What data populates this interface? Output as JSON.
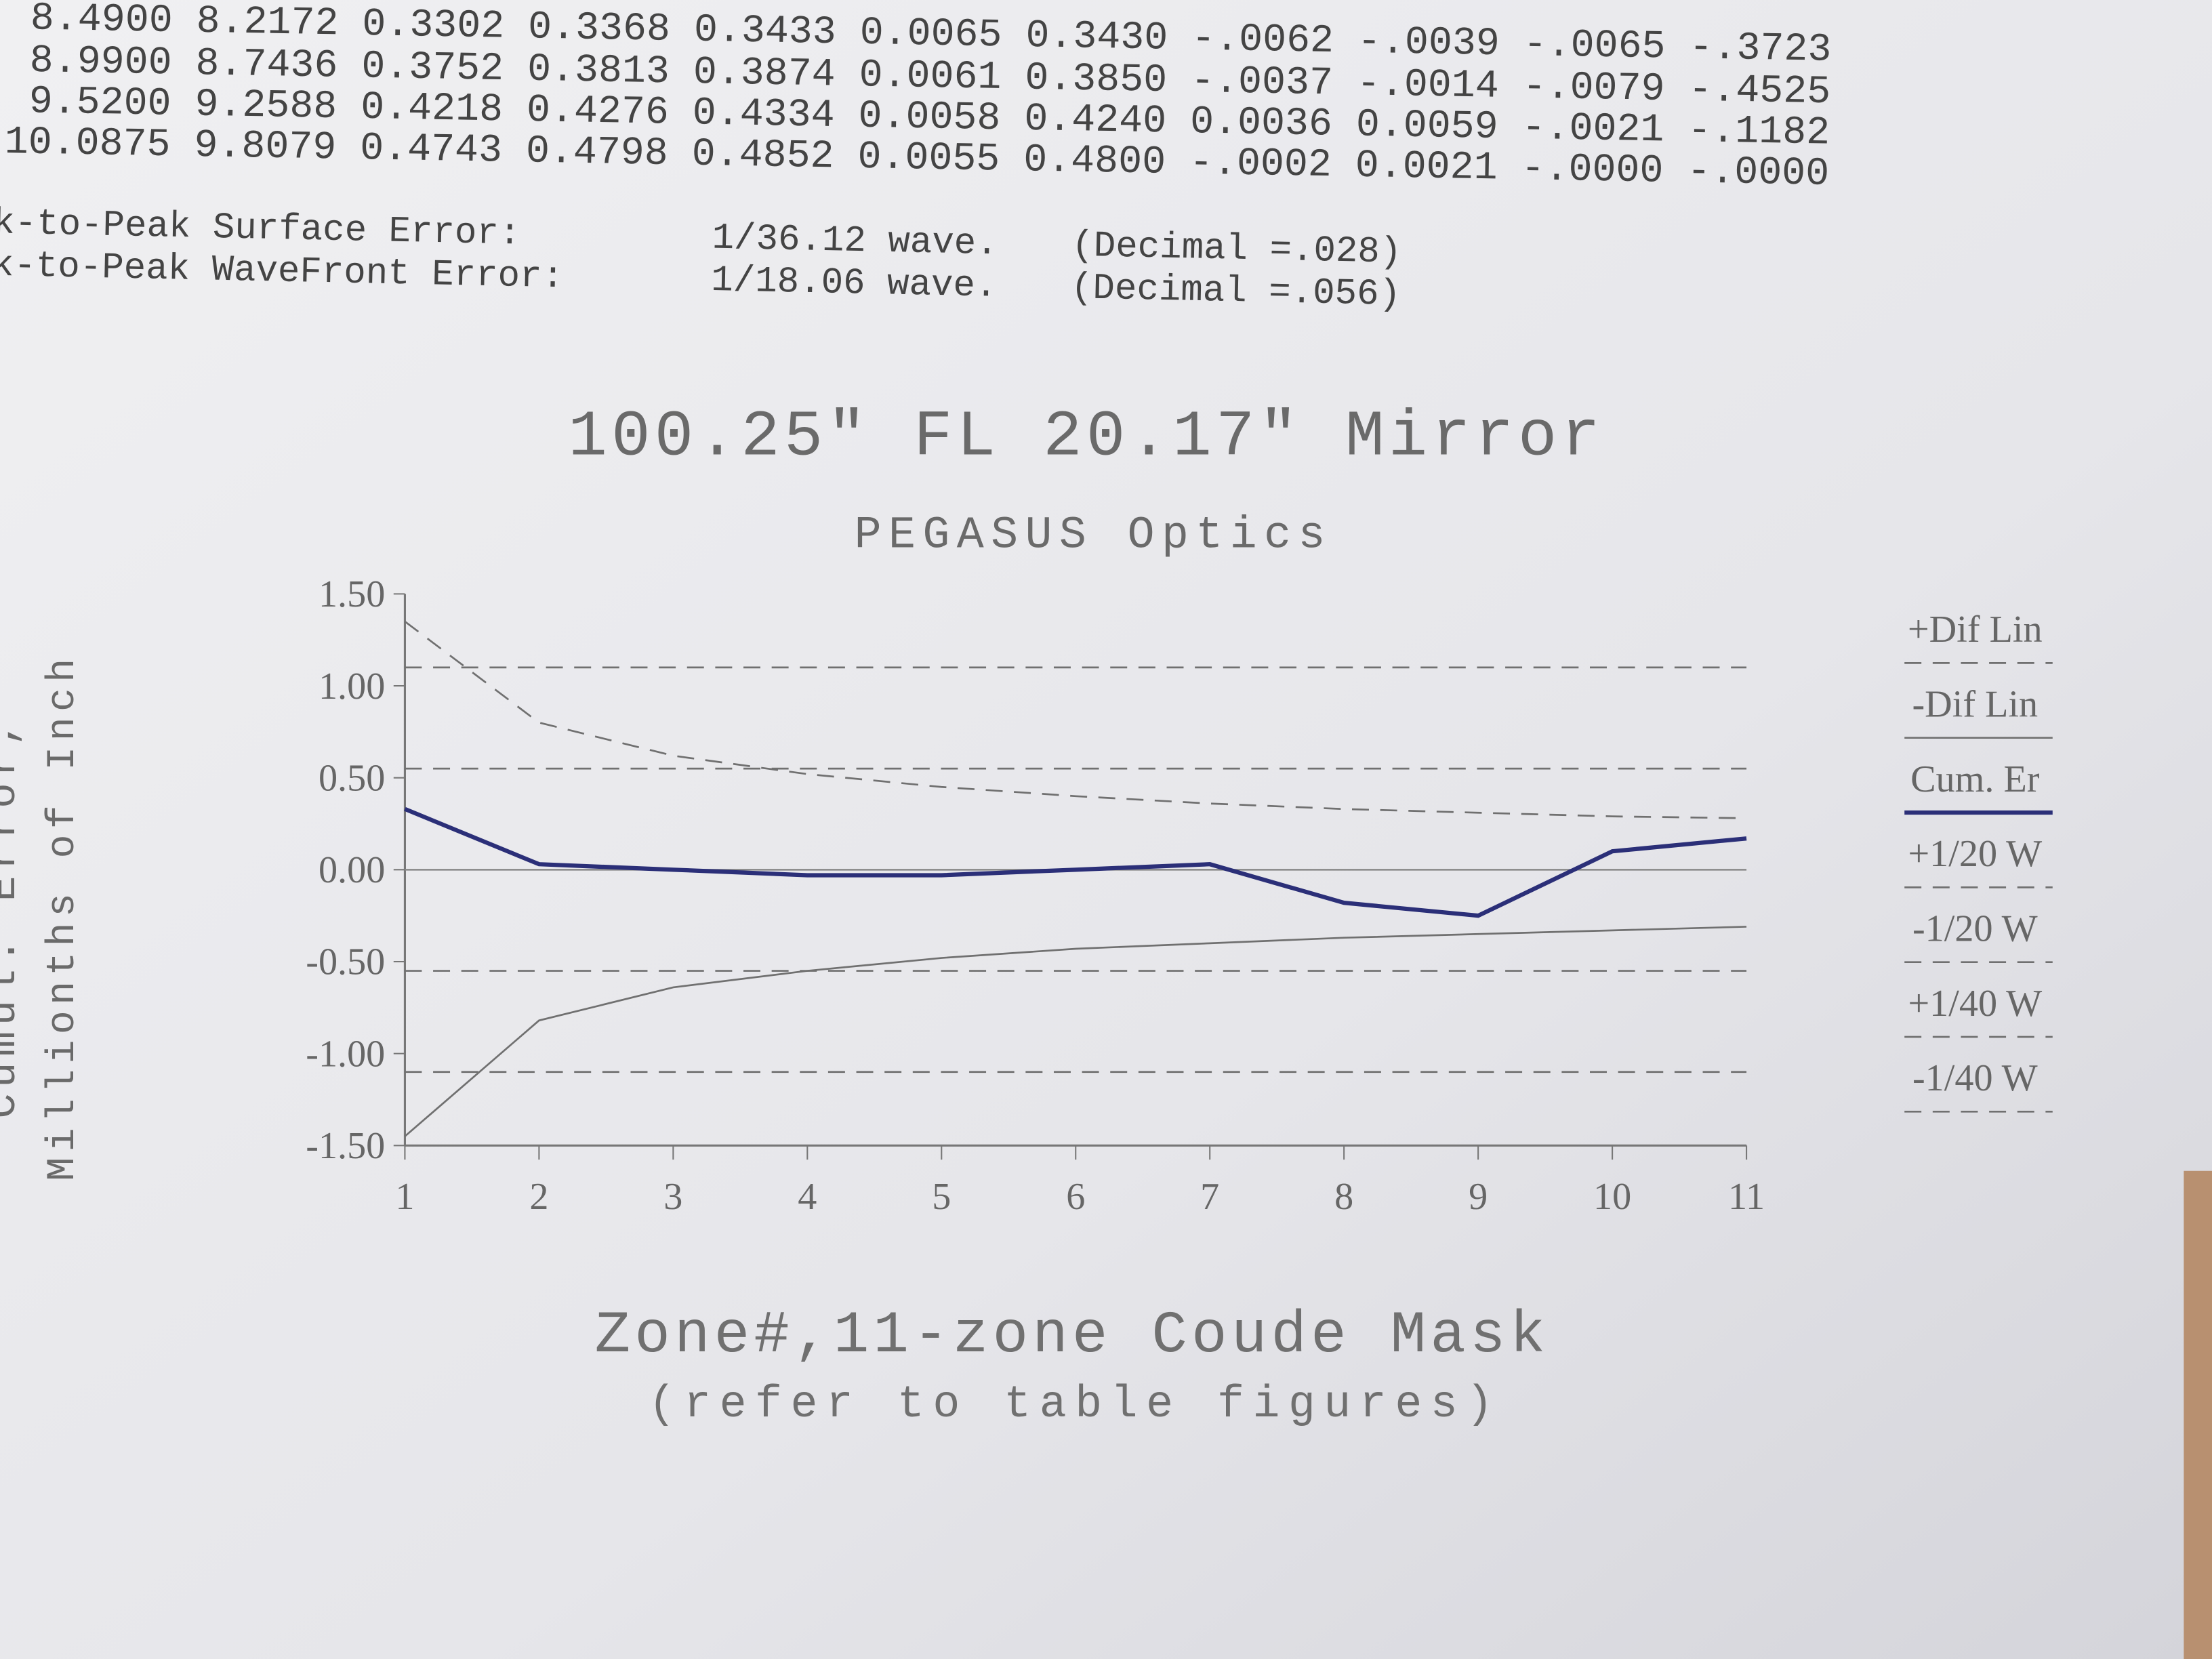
{
  "table": {
    "rows": [
      [
        "8.4900",
        "8.2172",
        "0.3302",
        "0.3368",
        "0.3433",
        "0.0065",
        "0.3430",
        "-.0062",
        "-.0039",
        "-.0065",
        "-.3723"
      ],
      [
        "8.9900",
        "8.7436",
        "0.3752",
        "0.3813",
        "0.3874",
        "0.0061",
        "0.3850",
        "-.0037",
        "-.0014",
        "-.0079",
        "-.4525"
      ],
      [
        "9.5200",
        "9.2588",
        "0.4218",
        "0.4276",
        "0.4334",
        "0.0058",
        "0.4240",
        "0.0036",
        "0.0059",
        "-.0021",
        "-.1182"
      ],
      [
        "10.0875",
        "9.8079",
        "0.4743",
        "0.4798",
        "0.4852",
        "0.0055",
        "0.4800",
        "-.0002",
        "0.0021",
        "-.0000",
        "-.0000"
      ]
    ]
  },
  "errors": [
    [
      "k-to-Peak Surface Error:",
      "1/36.12 wave.",
      "(Decimal =.028)"
    ],
    [
      "k-to-Peak WaveFront Error:",
      "1/18.06 wave.",
      "(Decimal =.056)"
    ]
  ],
  "chart_data": {
    "type": "line",
    "title": "100.25\" FL 20.17\" Mirror",
    "subtitle": "PEGASUS Optics",
    "ylabel": [
      "Cumul. Error,",
      "Millionths of Inch"
    ],
    "xlabel": "Zone#,11-zone Coude Mask",
    "note": "(refer to table figures)",
    "x": [
      1,
      2,
      3,
      4,
      5,
      6,
      7,
      8,
      9,
      10,
      11
    ],
    "xlim": [
      1,
      11
    ],
    "xticks": [
      1,
      2,
      3,
      4,
      5,
      6,
      7,
      8,
      9,
      10,
      11
    ],
    "ylim": [
      -1.5,
      1.5
    ],
    "yticks": [
      {
        "value": 1.5,
        "label": "1.50"
      },
      {
        "value": 1,
        "label": "1.00"
      },
      {
        "value": 0.5,
        "label": "0.50"
      },
      {
        "value": 0,
        "label": "0.00"
      },
      {
        "value": -0.5,
        "label": "-0.50"
      },
      {
        "value": -1,
        "label": "-1.00"
      },
      {
        "value": -1.5,
        "label": "-1.50"
      }
    ],
    "legend": "right",
    "series": [
      {
        "name": "+Dif Lin",
        "color": "#707070",
        "style": "dashed",
        "values": [
          1.35,
          0.8,
          0.62,
          0.52,
          0.45,
          0.4,
          0.36,
          0.33,
          0.31,
          0.29,
          0.28
        ]
      },
      {
        "name": "-Dif Lin",
        "color": "#707070",
        "style": "solid",
        "values": [
          -1.45,
          -0.82,
          -0.64,
          -0.55,
          -0.48,
          -0.43,
          -0.4,
          -0.37,
          -0.35,
          -0.33,
          -0.31
        ]
      },
      {
        "name": "Cum. Er",
        "color": "#2b2f78",
        "style": "solid",
        "values": [
          0.33,
          0.03,
          0,
          -0.03,
          -0.03,
          0,
          0.03,
          -0.18,
          -0.25,
          0.1,
          0.17
        ]
      },
      {
        "name": "+1/20 W",
        "color": "#707070",
        "style": "dashed",
        "values": [
          1.1,
          1.1,
          1.1,
          1.1,
          1.1,
          1.1,
          1.1,
          1.1,
          1.1,
          1.1,
          1.1
        ]
      },
      {
        "name": "-1/20 W",
        "color": "#707070",
        "style": "dashed",
        "values": [
          -1.1,
          -1.1,
          -1.1,
          -1.1,
          -1.1,
          -1.1,
          -1.1,
          -1.1,
          -1.1,
          -1.1,
          -1.1
        ]
      },
      {
        "name": "+1/40 W",
        "color": "#707070",
        "style": "dashed",
        "values": [
          0.55,
          0.55,
          0.55,
          0.55,
          0.55,
          0.55,
          0.55,
          0.55,
          0.55,
          0.55,
          0.55
        ]
      },
      {
        "name": "-1/40 W",
        "color": "#707070",
        "style": "dashed",
        "values": [
          -0.55,
          -0.55,
          -0.55,
          -0.55,
          -0.55,
          -0.55,
          -0.55,
          -0.55,
          -0.55,
          -0.55,
          -0.55
        ]
      }
    ]
  }
}
